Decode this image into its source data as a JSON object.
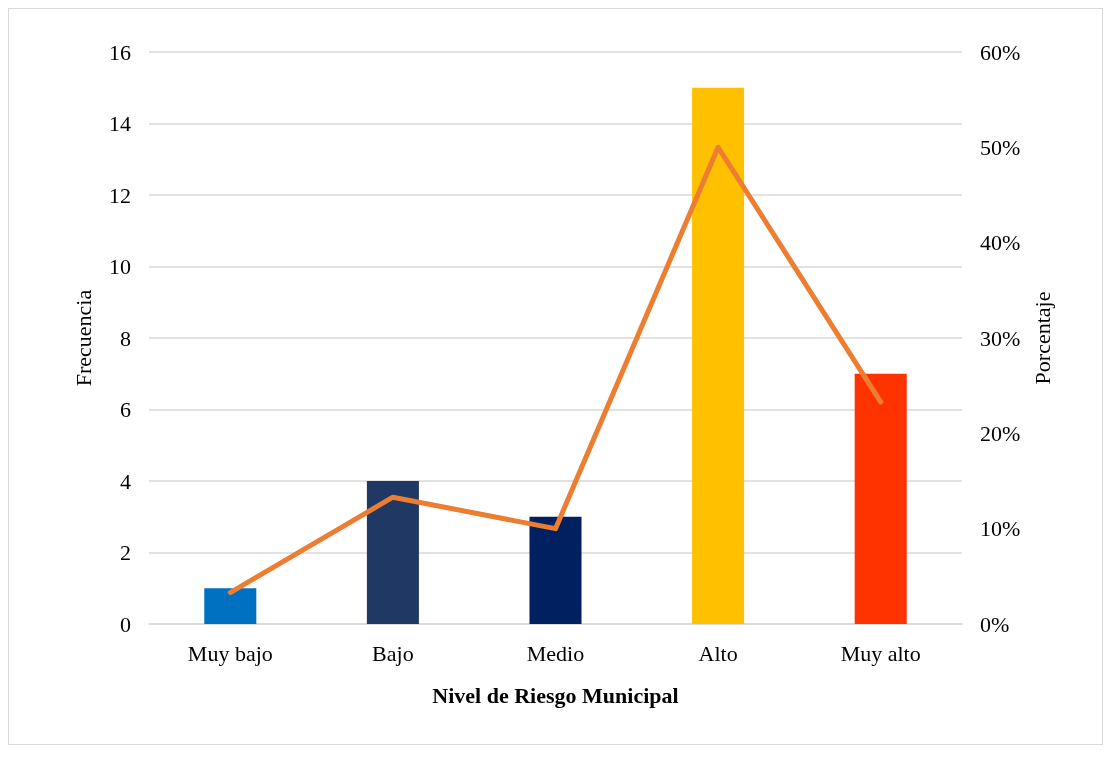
{
  "chart_data": {
    "type": "bar",
    "xlabel": "Nivel de Riesgo Municipal",
    "ylabel": "Frecuencia",
    "y2label": "Porcentaje",
    "categories": [
      "Muy bajo",
      "Bajo",
      "Medio",
      "Alto",
      "Muy alto"
    ],
    "series": [
      {
        "colors": [
          "#0070c0",
          "#203864",
          "#002060",
          "#ffc000",
          "#ff3300"
        ],
        "values": [
          1,
          4,
          3,
          15,
          7
        ]
      },
      {
        "type": "line",
        "axis": "y2",
        "color": "#ed7d31",
        "values": [
          3.3,
          13.3,
          10,
          50,
          23.3
        ]
      }
    ],
    "ylim": [
      0,
      16
    ],
    "yticks": [
      0,
      2,
      4,
      6,
      8,
      10,
      12,
      14,
      16
    ],
    "y2lim": [
      0,
      60
    ],
    "y2ticks": [
      {
        "value": 0,
        "label": "0%"
      },
      {
        "value": 10,
        "label": "10%"
      },
      {
        "value": 20,
        "label": "20%"
      },
      {
        "value": 30,
        "label": "30%"
      },
      {
        "value": 40,
        "label": "40%"
      },
      {
        "value": 50,
        "label": "50%"
      },
      {
        "value": 60,
        "label": "60%"
      }
    ],
    "grid": "y",
    "marker": "none",
    "line_style": "solid"
  }
}
